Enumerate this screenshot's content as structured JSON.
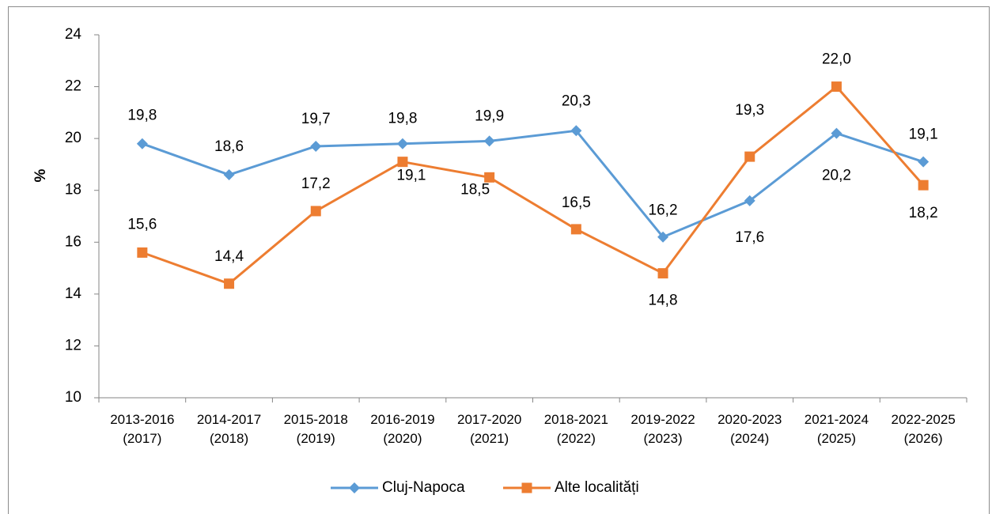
{
  "chart_data": {
    "type": "line",
    "y_label": "%",
    "categories": [
      "2013-2016 (2017)",
      "2014-2017 (2018)",
      "2015-2018 (2019)",
      "2016-2019 (2020)",
      "2017-2020 (2021)",
      "2018-2021 (2022)",
      "2019-2022 (2023)",
      "2020-2023 (2024)",
      "2021-2024 (2025)",
      "2022-2025 (2026)"
    ],
    "series": [
      {
        "name": "Cluj-Napoca",
        "color": "#5b9bd5",
        "marker": "diamond",
        "values": [
          19.8,
          18.6,
          19.7,
          19.8,
          19.9,
          20.3,
          16.2,
          17.6,
          20.2,
          19.1
        ],
        "value_labels": [
          "19,8",
          "18,6",
          "19,7",
          "19,8",
          "19,9",
          "20,3",
          "16,2",
          "17,6",
          "20,2",
          "19,1"
        ]
      },
      {
        "name": "Alte localități",
        "color": "#ed7d31",
        "marker": "square",
        "values": [
          15.6,
          14.4,
          17.2,
          19.1,
          18.5,
          16.5,
          14.8,
          19.3,
          22.0,
          18.2
        ],
        "value_labels": [
          "15,6",
          "14,4",
          "17,2",
          "19,1",
          "18,5",
          "16,5",
          "14,8",
          "19,3",
          "22,0",
          "18,2"
        ]
      }
    ],
    "ylim": [
      10,
      24
    ],
    "yticks": [
      10,
      12,
      14,
      16,
      18,
      20,
      22,
      24
    ],
    "legend": "bottom"
  }
}
